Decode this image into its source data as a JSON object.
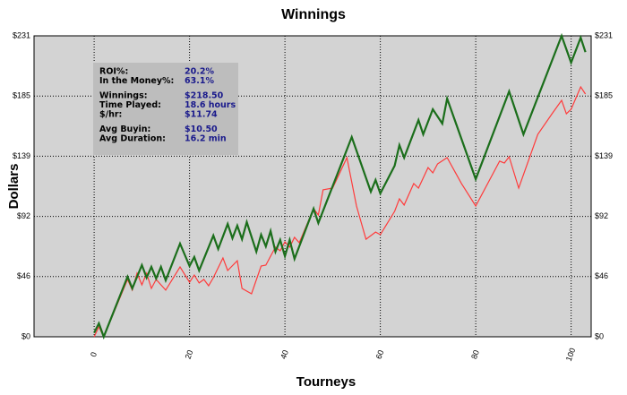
{
  "chart_data": {
    "type": "line",
    "title": "Winnings",
    "x_label": "Tourneys",
    "y_label": "Dollars",
    "xlim": [
      -12.6,
      104.2
    ],
    "xticks": [
      0,
      20,
      40,
      60,
      80,
      100
    ],
    "ylim": [
      0,
      231
    ],
    "yticks": [
      {
        "value": 0,
        "label": "$0"
      },
      {
        "value": 46.2,
        "label": "$46"
      },
      {
        "value": 92.4,
        "label": "$92"
      },
      {
        "value": 138.6,
        "label": "$139"
      },
      {
        "value": 184.8,
        "label": "$185"
      },
      {
        "value": 231,
        "label": "$231"
      }
    ],
    "grid": true,
    "series": [
      {
        "color": "#1b6e1b",
        "x": [
          0,
          1,
          2,
          7,
          8,
          10,
          11,
          12,
          13,
          14,
          15,
          18,
          20,
          21,
          22,
          25,
          26,
          28,
          29,
          30,
          31,
          32,
          34,
          35,
          36,
          37,
          38,
          39,
          40,
          41,
          42,
          46,
          47,
          54,
          58,
          59,
          60,
          63,
          64,
          65,
          68,
          69,
          71,
          73,
          74,
          80,
          87,
          90,
          98,
          100,
          102,
          103
        ],
        "values": [
          3,
          10.3,
          0,
          46.1,
          37.1,
          55,
          45.4,
          53.6,
          44.7,
          53.6,
          43.3,
          71.5,
          54.3,
          61.2,
          50.9,
          77.7,
          67.4,
          86.6,
          75.6,
          85.3,
          74.9,
          88,
          65.3,
          78.4,
          69.4,
          81.1,
          65.3,
          74.3,
          61.9,
          74.3,
          59.8,
          98.3,
          87.3,
          153.3,
          111.4,
          120.3,
          110,
          131.3,
          147.1,
          137.5,
          166.4,
          155.4,
          174.6,
          163.6,
          182.9,
          121,
          188.4,
          155.4,
          231,
          210.4,
          229.6,
          218.5
        ]
      },
      {
        "color": "#ff3b3b",
        "x": [
          0,
          1,
          2,
          7,
          8,
          9,
          10,
          11,
          12,
          13,
          15,
          18,
          20,
          21,
          22,
          23,
          24,
          25,
          27,
          28,
          30,
          31,
          33,
          35,
          36,
          38,
          39,
          40,
          41,
          42,
          43,
          46,
          47,
          48,
          50,
          53,
          55,
          57,
          59,
          60,
          63,
          64,
          65,
          67,
          68,
          70,
          71,
          72,
          74,
          77,
          80,
          85,
          86,
          87,
          89,
          93,
          96,
          98,
          99,
          100,
          102,
          103
        ],
        "values": [
          0,
          7.6,
          0,
          44,
          35.8,
          48.8,
          39.9,
          48.8,
          37.1,
          44,
          35.8,
          53.6,
          41.9,
          47.4,
          41.3,
          44,
          39.2,
          45.4,
          60.5,
          50.9,
          58.4,
          37.1,
          33,
          54.3,
          55,
          68.8,
          66,
          72.9,
          68.8,
          76.3,
          72.2,
          98.3,
          93.5,
          112.8,
          114.1,
          137.5,
          100.4,
          74.9,
          80.4,
          78.4,
          96.3,
          105.9,
          101.1,
          117.6,
          114.1,
          129.9,
          125.8,
          132.7,
          137.5,
          117.6,
          100.4,
          134.8,
          133.4,
          138.2,
          114.1,
          155.4,
          171.2,
          181.5,
          171.2,
          174.6,
          191.8,
          186.3
        ]
      }
    ],
    "info_box": [
      [
        {
          "label": "ROI%:",
          "value": "20.2%"
        },
        {
          "label": "In the Money%:",
          "value": "63.1%"
        }
      ],
      [
        {
          "label": "Winnings:",
          "value": "$218.50"
        },
        {
          "label": "Time Played:",
          "value": "18.6 hours"
        },
        {
          "label": "$/hr:",
          "value": "$11.74"
        }
      ],
      [
        {
          "label": "Avg Buyin:",
          "value": "$10.50"
        },
        {
          "label": "Avg Duration:",
          "value": "16.2 min"
        }
      ]
    ]
  }
}
